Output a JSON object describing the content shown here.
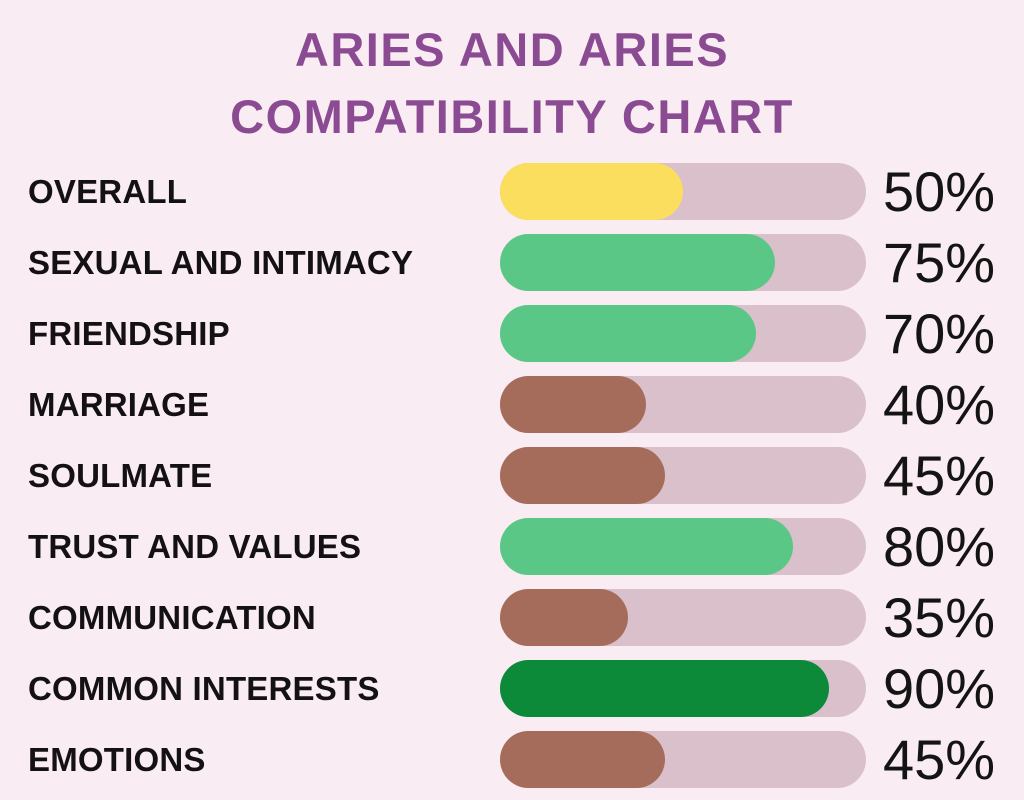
{
  "title": {
    "line1": "ARIES AND ARIES",
    "line2": "COMPATIBILITY CHART"
  },
  "colors": {
    "background": "#f9ecf2",
    "title_text": "#8b4b93",
    "label_text": "#141114",
    "value_text": "#141414",
    "bar_track": "#dac0ca",
    "yellow": "#fbde5d",
    "green": "#5bc787",
    "brown": "#a66c5b",
    "dark_green": "#0c8a39"
  },
  "chart_data": {
    "type": "bar",
    "orientation": "horizontal",
    "title": "ARIES AND ARIES COMPATIBILITY CHART",
    "categories": [
      "OVERALL",
      "SEXUAL AND INTIMACY",
      "FRIENDSHIP",
      "MARRIAGE",
      "SOULMATE",
      "TRUST AND VALUES",
      "COMMUNICATION",
      "COMMON INTERESTS",
      "EMOTIONS"
    ],
    "values": [
      50,
      75,
      70,
      40,
      45,
      80,
      35,
      90,
      45
    ],
    "value_labels": [
      "50%",
      "75%",
      "70%",
      "40%",
      "45%",
      "80%",
      "35%",
      "90%",
      "45%"
    ],
    "bar_colors": [
      "#fbde5d",
      "#5bc787",
      "#5bc787",
      "#a66c5b",
      "#a66c5b",
      "#5bc787",
      "#a66c5b",
      "#0c8a39",
      "#a66c5b"
    ],
    "xlim": [
      0,
      100
    ],
    "grid": false,
    "legend": false
  }
}
